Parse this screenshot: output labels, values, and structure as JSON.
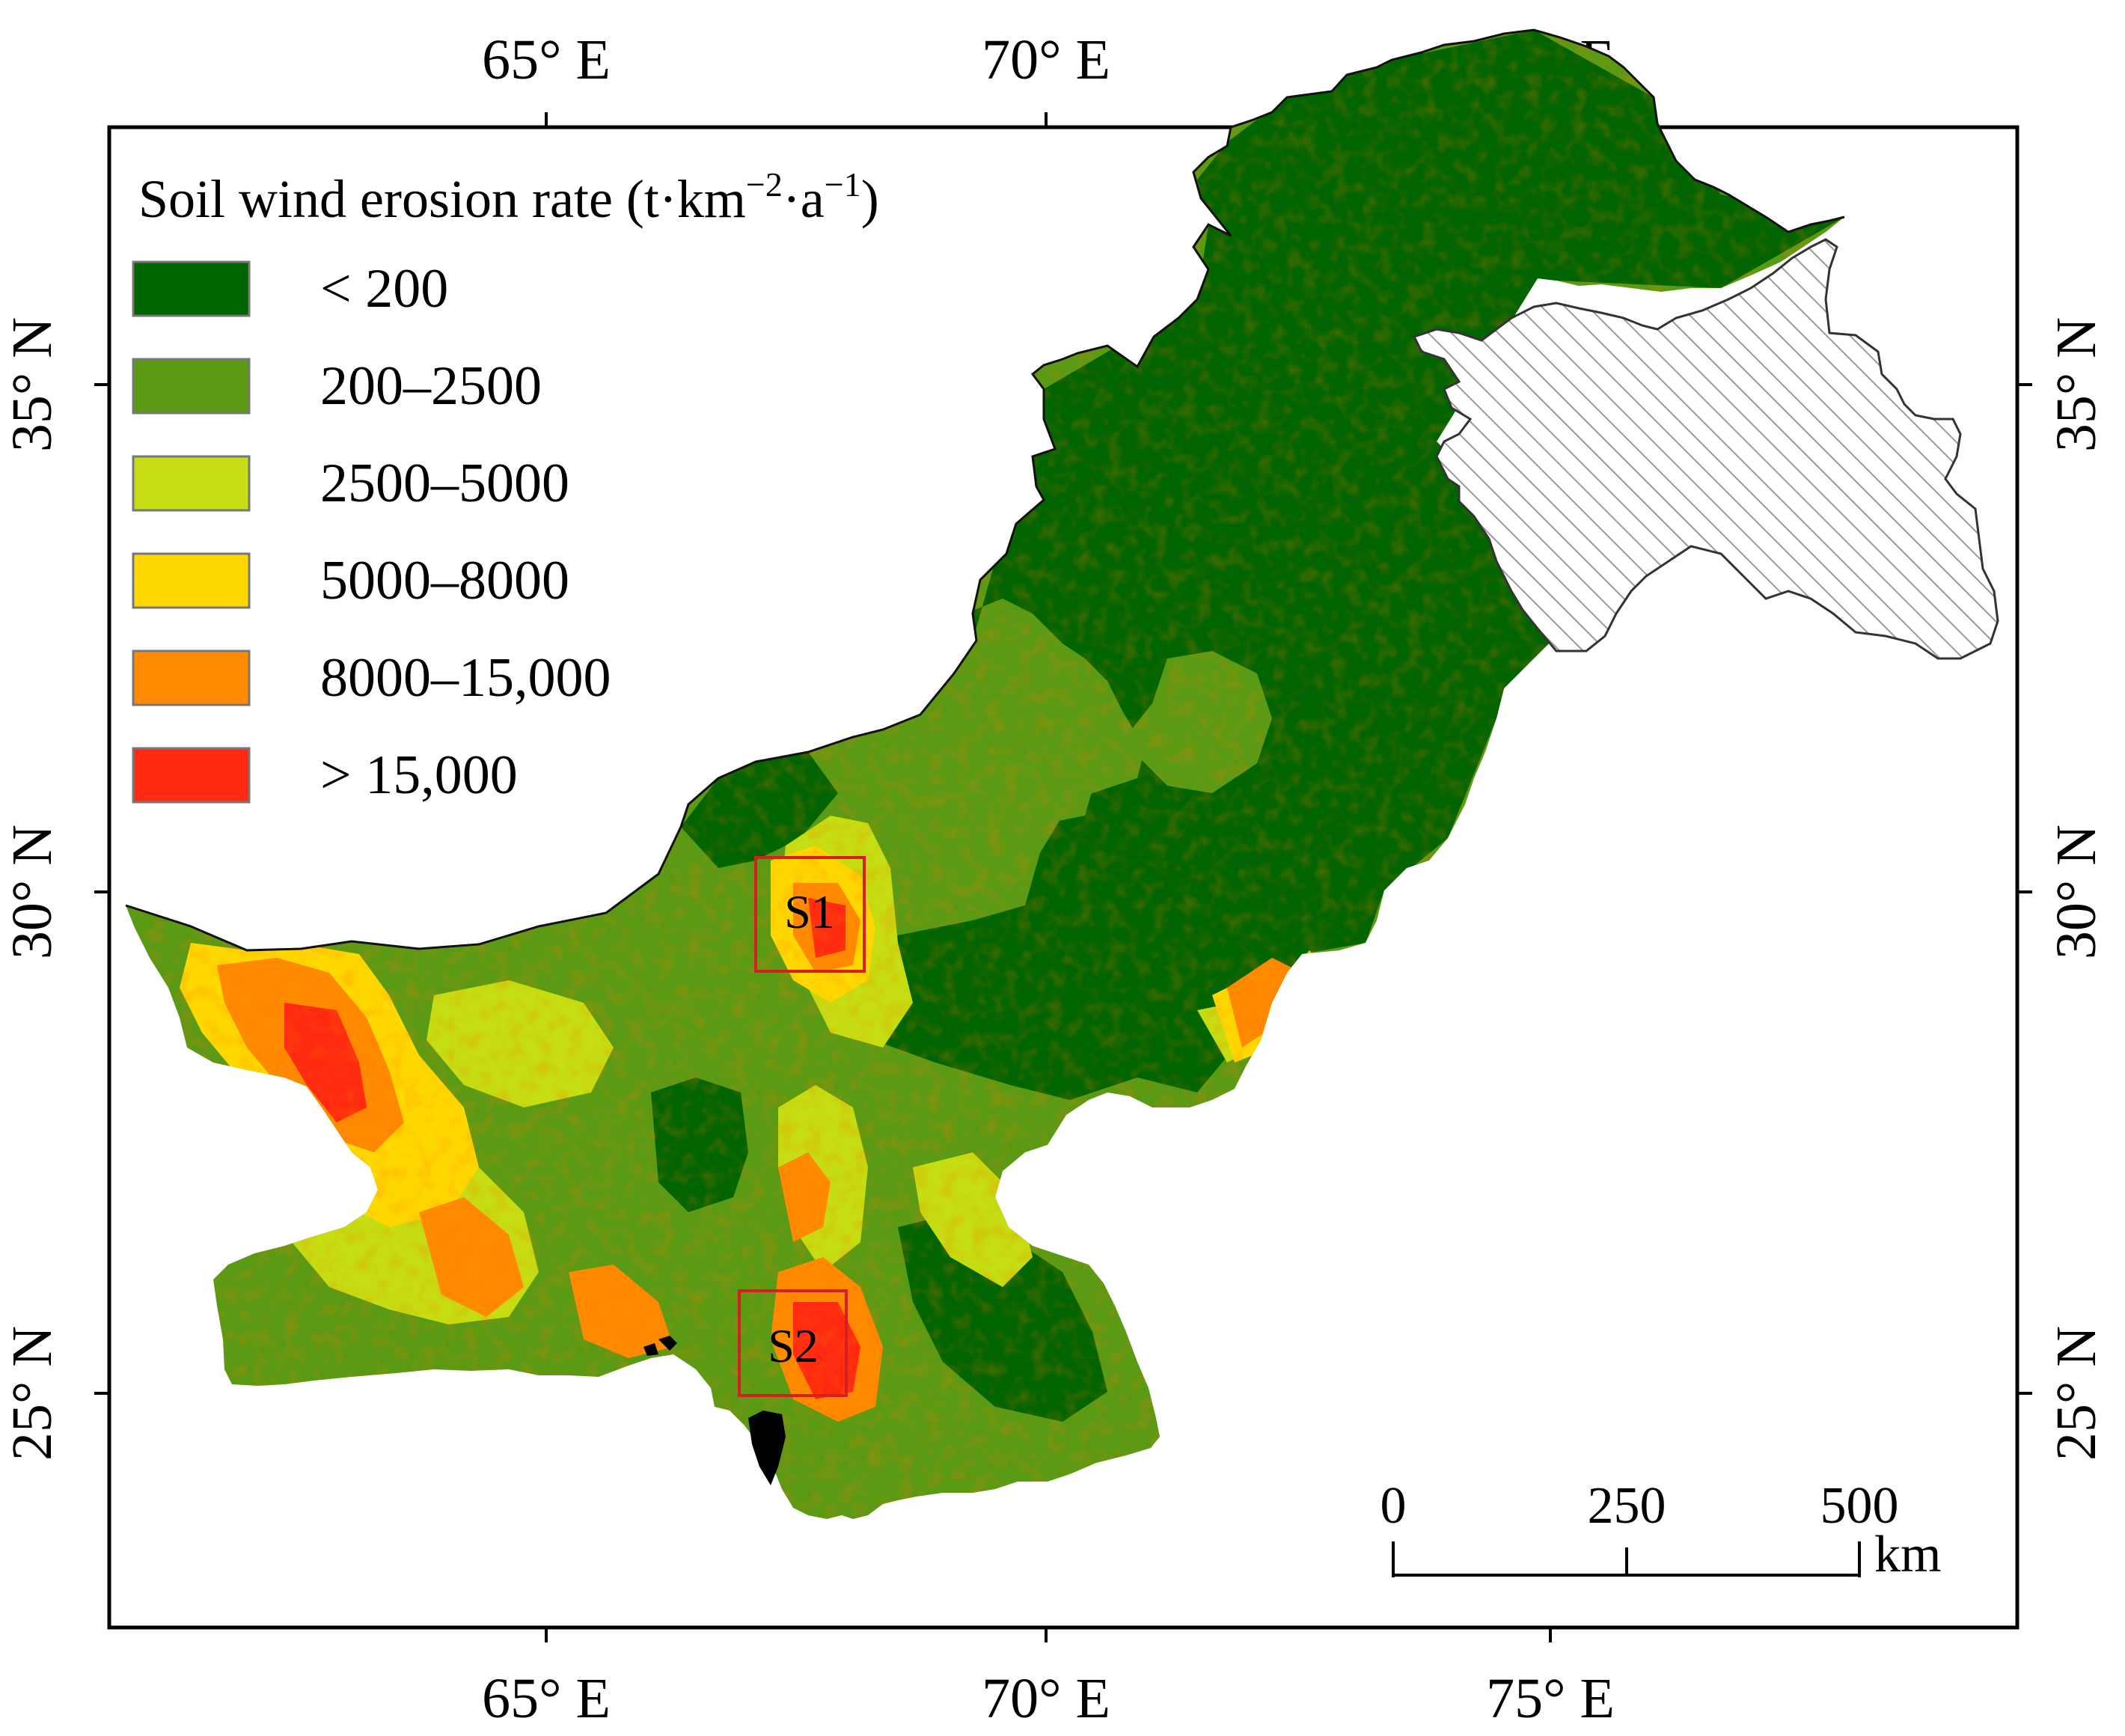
{
  "legend": {
    "title_main": "Soil wind erosion rate (t·km",
    "title_sup1": "−2",
    "title_mid": "·a",
    "title_sup2": "−1",
    "title_end": ")",
    "items": [
      {
        "label": "< 200",
        "color": "#006400"
      },
      {
        "label": "200–2500",
        "color": "#5a9a14"
      },
      {
        "label": "2500–5000",
        "color": "#c5dd12"
      },
      {
        "label": "5000–8000",
        "color": "#ffd800"
      },
      {
        "label": "8000–15,000",
        "color": "#ff8a00"
      },
      {
        "label": "> 15,000",
        "color": "#ff2a10"
      }
    ]
  },
  "axes": {
    "top": [
      "65° E",
      "70° E",
      "75° E"
    ],
    "bottom": [
      "65° E",
      "70° E",
      "75° E"
    ],
    "left": [
      "35° N",
      "30° N",
      "25° N"
    ],
    "right": [
      "35° N",
      "30° N",
      "25° N"
    ]
  },
  "sites": [
    {
      "label": "S1"
    },
    {
      "label": "S2"
    }
  ],
  "scale_bar": {
    "ticks": [
      "0",
      "250",
      "500"
    ],
    "unit": "km"
  },
  "colors": {
    "hatch_region_fill": "#ffffff",
    "hatch_stroke": "#999999",
    "site_box": "#d42020"
  }
}
